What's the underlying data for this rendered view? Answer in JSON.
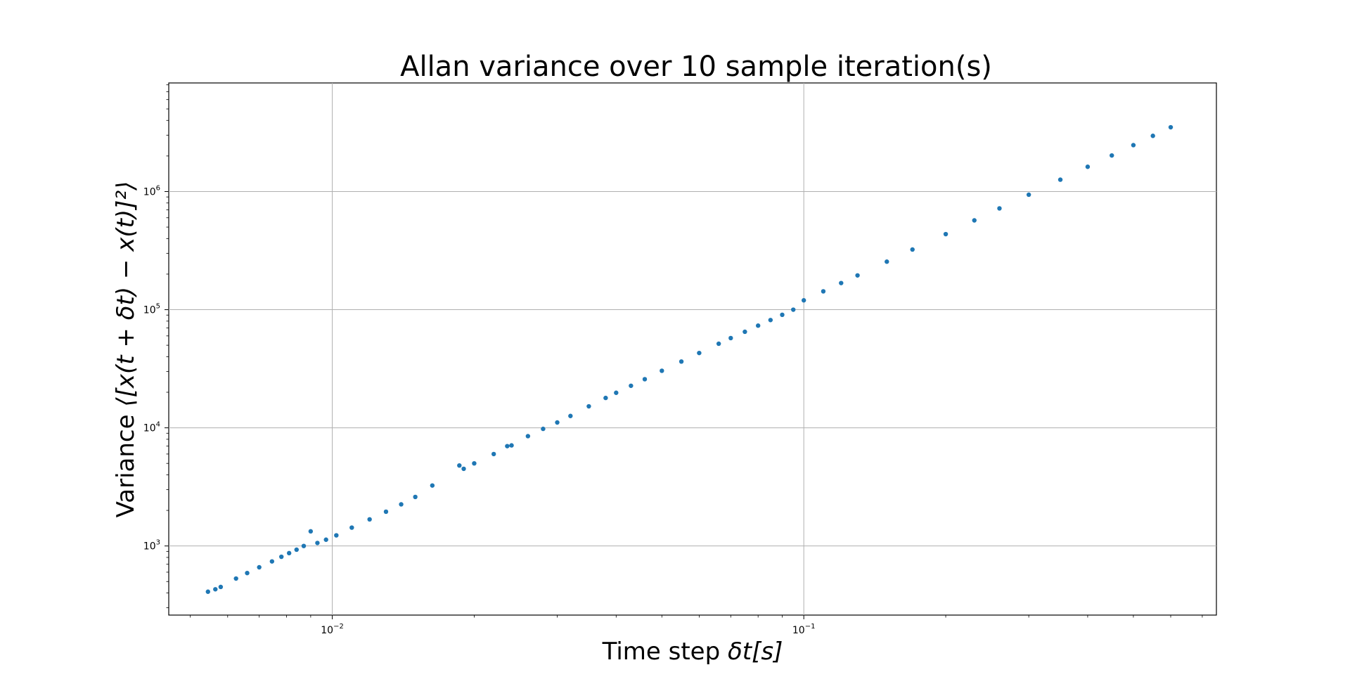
{
  "chart_data": {
    "type": "scatter",
    "title": "Allan variance over 10 sample iteration(s)",
    "xlabel_prefix": "Time step ",
    "xlabel_math": "δt[s]",
    "ylabel_prefix": "Variance ",
    "ylabel_math": "⟨[x(t + δt) − x(t)]²⟩",
    "xscale": "log",
    "yscale": "log",
    "xlim": [
      0.0045,
      0.75
    ],
    "ylim": [
      260,
      8300000
    ],
    "grid": true,
    "marker_color": "#1f77b4",
    "x_ticks": [
      {
        "base": "10",
        "exp": "−2",
        "value": 0.01
      },
      {
        "base": "10",
        "exp": "−1",
        "value": 0.1
      }
    ],
    "y_ticks": [
      {
        "base": "10",
        "exp": "3",
        "value": 1000
      },
      {
        "base": "10",
        "exp": "4",
        "value": 10000
      },
      {
        "base": "10",
        "exp": "5",
        "value": 100000
      },
      {
        "base": "10",
        "exp": "6",
        "value": 1000000
      }
    ],
    "series": [
      {
        "x": [
          0.00545,
          0.00565,
          0.0058,
          0.00625,
          0.0066,
          0.007,
          0.00745,
          0.0078,
          0.0081,
          0.0084,
          0.0087,
          0.009,
          0.0093,
          0.0097,
          0.0102,
          0.011,
          0.012,
          0.013,
          0.014,
          0.015,
          0.0163,
          0.019,
          0.0186,
          0.02,
          0.022,
          0.0235,
          0.024,
          0.026,
          0.028,
          0.03,
          0.032,
          0.035,
          0.038,
          0.04,
          0.043,
          0.046,
          0.05,
          0.055,
          0.06,
          0.066,
          0.07,
          0.075,
          0.08,
          0.085,
          0.09,
          0.095,
          0.1,
          0.11,
          0.12,
          0.13,
          0.15,
          0.17,
          0.2,
          0.23,
          0.26,
          0.3,
          0.35,
          0.4,
          0.45,
          0.5,
          0.55,
          0.6
        ],
        "y": [
          410,
          430,
          450,
          530,
          590,
          660,
          740,
          810,
          870,
          930,
          1000,
          1330,
          1060,
          1130,
          1230,
          1430,
          1680,
          1950,
          2250,
          2600,
          3250,
          4500,
          4800,
          5000,
          6000,
          7000,
          7100,
          8500,
          9800,
          11100,
          12600,
          15200,
          17900,
          19800,
          22700,
          25800,
          30400,
          36400,
          43000,
          51500,
          57500,
          65000,
          73300,
          81700,
          90500,
          100000,
          120000,
          143000,
          168000,
          195000,
          255000,
          323000,
          436000,
          570000,
          720000,
          940000,
          1260000,
          1620000,
          2020000,
          2470000,
          2960000,
          3500000
        ]
      }
    ]
  }
}
